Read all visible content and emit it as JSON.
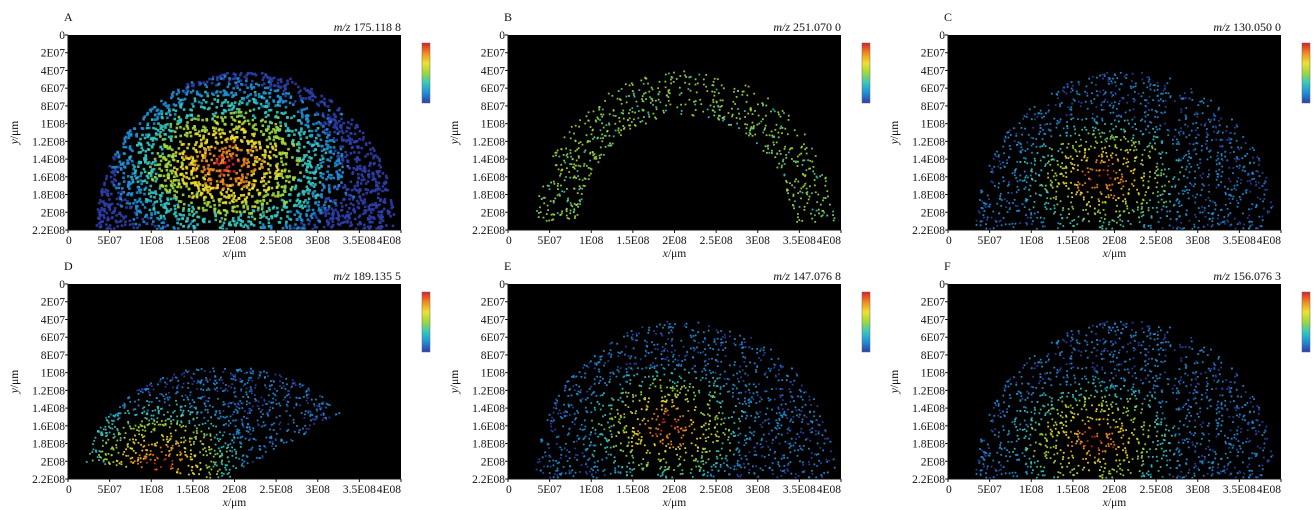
{
  "figure": {
    "panels": [
      {
        "letter": "A",
        "mz_prefix": "m/z",
        "mz_value": "175.118 8",
        "distribution": "dense",
        "peak_x": 190000000.0,
        "peak_y": 145000000.0
      },
      {
        "letter": "B",
        "mz_prefix": "m/z",
        "mz_value": "251.070 0",
        "distribution": "rim",
        "peak_x": 240000000.0,
        "peak_y": 80000000.0
      },
      {
        "letter": "C",
        "mz_prefix": "m/z",
        "mz_value": "130.050 0",
        "distribution": "center",
        "peak_x": 185000000.0,
        "peak_y": 160000000.0
      },
      {
        "letter": "D",
        "mz_prefix": "m/z",
        "mz_value": "189.135 5",
        "distribution": "lower-left",
        "peak_x": 110000000.0,
        "peak_y": 200000000.0
      },
      {
        "letter": "E",
        "mz_prefix": "m/z",
        "mz_value": "147.076 8",
        "distribution": "center",
        "peak_x": 190000000.0,
        "peak_y": 160000000.0
      },
      {
        "letter": "F",
        "mz_prefix": "m/z",
        "mz_value": "156.076 3",
        "distribution": "center",
        "peak_x": 175000000.0,
        "peak_y": 175000000.0
      }
    ]
  },
  "chart_data": {
    "type": "heatmap",
    "x_ticks": [
      "0",
      "5E07",
      "1E08",
      "1.5E08",
      "2E08",
      "2.5E08",
      "3E08",
      "3.5E08",
      "4E08"
    ],
    "y_ticks": [
      "0",
      "2E07",
      "4E07",
      "6E07",
      "8E07",
      "1E08",
      "1.2E08",
      "1.4E08",
      "1.6E08",
      "1.8E08",
      "2E08",
      "2.2E08"
    ],
    "xlabel_var": "x",
    "ylabel_var": "y",
    "axis_unit": "/μm",
    "xlim": [
      0,
      400000000.0
    ],
    "ylim": [
      0,
      220000000.0
    ],
    "y_inverted": true,
    "colormap": [
      "#2c3ea8",
      "#1f8fd6",
      "#35c7c0",
      "#9ed83f",
      "#f0e030",
      "#f08a20",
      "#d8202a"
    ],
    "background_color": "#000000"
  }
}
